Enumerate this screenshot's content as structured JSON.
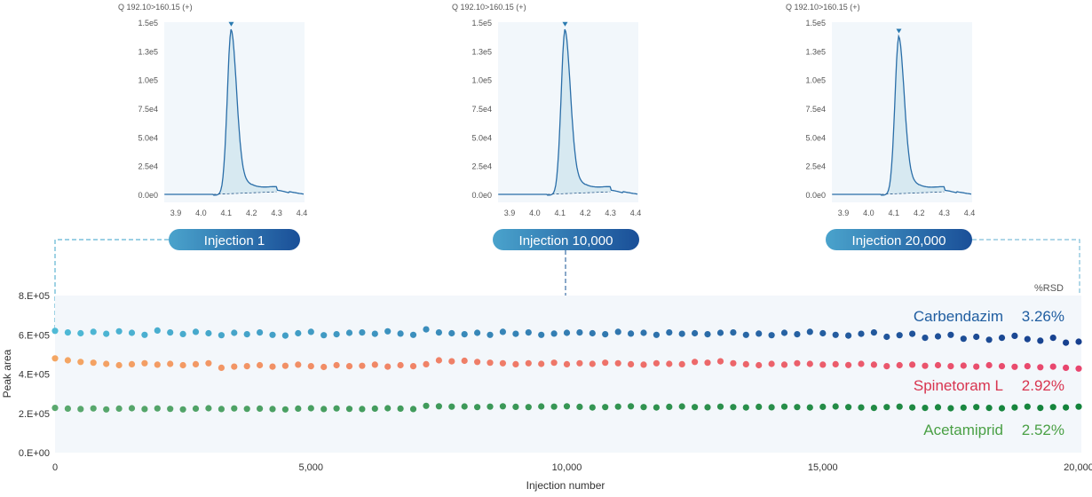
{
  "chart_data": [
    {
      "type": "line",
      "title": "Q 192.10>160.15 (+)",
      "badge": "Injection 1",
      "xticks": [
        "3.9",
        "4.0",
        "4.1",
        "4.2",
        "4.3",
        "4.4"
      ],
      "yticks": [
        "0.0e0",
        "2.5e4",
        "5.0e4",
        "7.5e4",
        "1.0e5",
        "1.3e5",
        "1.5e5"
      ],
      "xlim": [
        3.855,
        4.41
      ],
      "ylim": [
        0,
        150000
      ],
      "peak_rt": 4.12,
      "peak_height": 144000
    },
    {
      "type": "line",
      "title": "Q 192.10>160.15 (+)",
      "badge": "Injection 10,000",
      "xticks": [
        "3.9",
        "4.0",
        "4.1",
        "4.2",
        "4.3",
        "4.4"
      ],
      "yticks": [
        "0.0e0",
        "2.5e4",
        "5.0e4",
        "7.5e4",
        "1.0e5",
        "1.3e5",
        "1.5e5"
      ],
      "xlim": [
        3.855,
        4.41
      ],
      "ylim": [
        0,
        150000
      ],
      "peak_rt": 4.12,
      "peak_height": 144000
    },
    {
      "type": "line",
      "title": "Q 192.10>160.15 (+)",
      "badge": "Injection 20,000",
      "xticks": [
        "3.9",
        "4.0",
        "4.1",
        "4.2",
        "4.3",
        "4.4"
      ],
      "yticks": [
        "0.0e0",
        "2.5e4",
        "5.0e4",
        "7.5e4",
        "1.0e5",
        "1.3e5",
        "1.5e5"
      ],
      "xlim": [
        3.855,
        4.41
      ],
      "ylim": [
        0,
        150000
      ],
      "peak_rt": 4.12,
      "peak_height": 138000
    },
    {
      "type": "scatter",
      "xlabel": "Injection number",
      "ylabel": "Peak area",
      "xlim": [
        0,
        20000
      ],
      "ylim": [
        0,
        800000
      ],
      "xticks": [
        "0",
        "5,000",
        "10,000",
        "15,000",
        "20,000"
      ],
      "xtick_values": [
        0,
        5000,
        10000,
        15000,
        20000
      ],
      "yticks": [
        "0.E+00",
        "2.E+05",
        "4.E+05",
        "6.E+05",
        "8.E+05"
      ],
      "ytick_values": [
        0,
        200000,
        400000,
        600000,
        800000
      ],
      "rsd_header": "%RSD",
      "x_step": 250,
      "series": [
        {
          "name": "Carbendazim",
          "rsd": "3.26%",
          "color_start": "#4fbad6",
          "color_end": "#163f8e",
          "label_color": "#1f5da0",
          "values": [
            620000,
            612000,
            608000,
            615000,
            605000,
            618000,
            610000,
            600000,
            622000,
            612000,
            604000,
            615000,
            608000,
            598000,
            610000,
            603000,
            612000,
            600000,
            596000,
            608000,
            615000,
            598000,
            603000,
            610000,
            612000,
            605000,
            618000,
            606000,
            600000,
            628000,
            612000,
            608000,
            603000,
            610000,
            600000,
            615000,
            605000,
            612000,
            600000,
            606000,
            610000,
            612000,
            608000,
            603000,
            615000,
            606000,
            610000,
            600000,
            612000,
            605000,
            608000,
            603000,
            610000,
            612000,
            600000,
            606000,
            598000,
            610000,
            603000,
            615000,
            608000,
            600000,
            596000,
            605000,
            612000,
            590000,
            598000,
            605000,
            585000,
            592000,
            600000,
            580000,
            590000,
            575000,
            585000,
            595000,
            578000,
            570000,
            585000,
            560000,
            565000
          ]
        },
        {
          "name": "Spinetoram L",
          "rsd": "2.92%",
          "color_start": "#f4a663",
          "color_end": "#e8456e",
          "label_color": "#d8344f",
          "values": [
            480000,
            470000,
            462000,
            458000,
            452000,
            445000,
            450000,
            455000,
            448000,
            452000,
            445000,
            450000,
            455000,
            432000,
            438000,
            440000,
            445000,
            438000,
            442000,
            448000,
            440000,
            436000,
            445000,
            440000,
            442000,
            448000,
            438000,
            445000,
            440000,
            450000,
            470000,
            465000,
            468000,
            462000,
            458000,
            455000,
            450000,
            455000,
            452000,
            458000,
            450000,
            455000,
            452000,
            458000,
            455000,
            450000,
            448000,
            455000,
            452000,
            450000,
            462000,
            458000,
            465000,
            455000,
            450000,
            445000,
            452000,
            448000,
            455000,
            452000,
            448000,
            450000,
            446000,
            452000,
            448000,
            440000,
            445000,
            448000,
            442000,
            445000,
            440000,
            443000,
            438000,
            445000,
            440000,
            437000,
            440000,
            435000,
            438000,
            432000,
            428000
          ]
        },
        {
          "name": "Acetamiprid",
          "rsd": "2.52%",
          "color_start": "#5aa86e",
          "color_end": "#12833a",
          "label_color": "#4aa045",
          "values": [
            228000,
            224000,
            222000,
            225000,
            220000,
            224000,
            226000,
            222000,
            225000,
            223000,
            220000,
            224000,
            226000,
            222000,
            225000,
            223000,
            224000,
            222000,
            220000,
            224000,
            226000,
            222000,
            225000,
            223000,
            222000,
            224000,
            226000,
            224000,
            222000,
            238000,
            236000,
            234000,
            235000,
            232000,
            234000,
            236000,
            233000,
            232000,
            235000,
            234000,
            236000,
            233000,
            230000,
            232000,
            234000,
            236000,
            232000,
            230000,
            233000,
            235000,
            232000,
            231000,
            234000,
            232000,
            230000,
            233000,
            231000,
            234000,
            232000,
            230000,
            233000,
            235000,
            232000,
            230000,
            228000,
            232000,
            234000,
            230000,
            228000,
            231000,
            226000,
            229000,
            232000,
            228000,
            226000,
            230000,
            234000,
            228000,
            232000,
            230000,
            234000
          ]
        }
      ]
    }
  ]
}
